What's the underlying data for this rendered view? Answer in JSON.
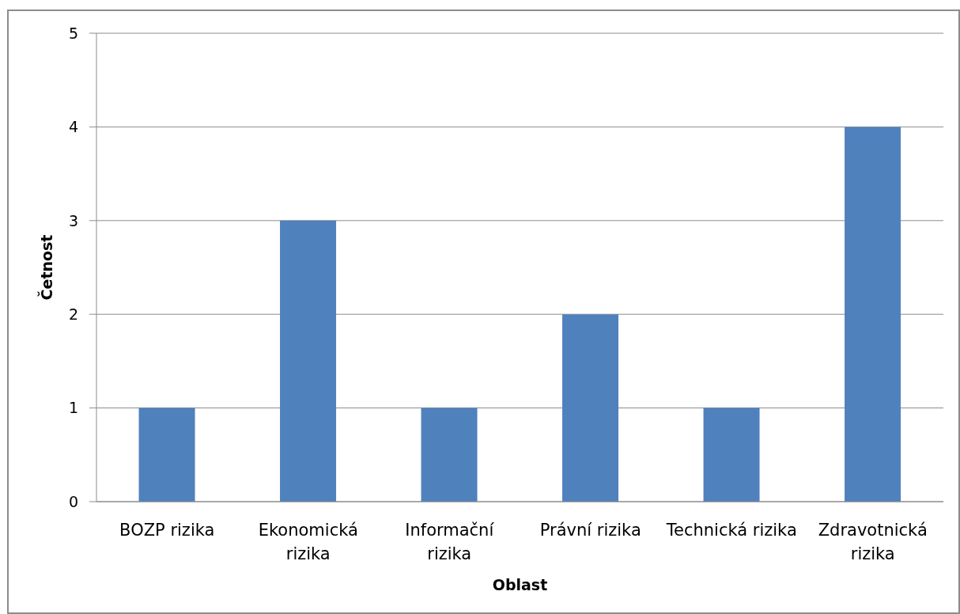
{
  "chart_data": {
    "type": "bar",
    "xlabel": "Oblast",
    "ylabel": "Četnost",
    "categories": [
      "BOZP rizika",
      "Ekonomická rizika",
      "Informační rizika",
      "Právní rizika",
      "Technická rizika",
      "Zdravotnická rizika"
    ],
    "values": [
      1,
      3,
      1,
      2,
      1,
      4
    ],
    "color": "#4f81bd",
    "ylim": [
      0,
      5
    ],
    "yticks": [
      0,
      1,
      2,
      3,
      4,
      5
    ],
    "grid": "y"
  }
}
